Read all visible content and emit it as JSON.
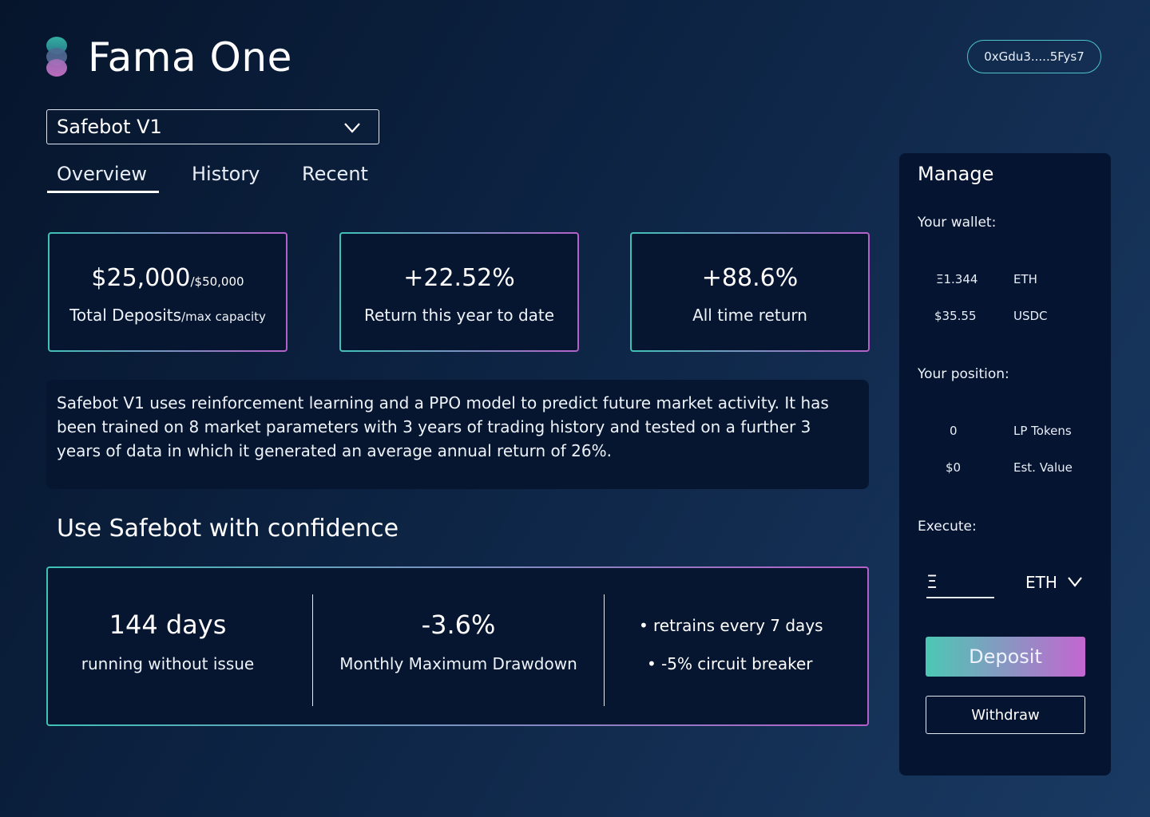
{
  "app": {
    "title": "Fama One"
  },
  "wallet": {
    "address": "0xGdu3.....5Fys7"
  },
  "bot_select": {
    "value": "Safebot V1"
  },
  "tabs": [
    {
      "label": "Overview",
      "active": true
    },
    {
      "label": "History",
      "active": false
    },
    {
      "label": "Recent",
      "active": false
    }
  ],
  "stats": {
    "deposits": {
      "value": "$25,000",
      "max": "/$50,000",
      "label": "Total Deposits",
      "label_suffix": "/max capacity"
    },
    "ytd": {
      "value": "+22.52%",
      "label": "Return this year to date"
    },
    "all_time": {
      "value": "+88.6%",
      "label": "All time return"
    }
  },
  "description": "Safebot V1 uses reinforcement learning and a PPO model to predict future market activity. It has been trained on 8 market parameters with 3 years of trading history and tested on a further 3 years of data in which it generated an average annual return of 26%.",
  "confidence": {
    "title": "Use Safebot with confidence",
    "uptime": {
      "value": "144 days",
      "label": "running without issue"
    },
    "drawdown": {
      "value": "-3.6%",
      "label": "Monthly Maximum Drawdown"
    },
    "bullets": [
      "retrains every 7 days",
      "-5% circuit breaker"
    ]
  },
  "manage": {
    "title": "Manage",
    "wallet_label": "Your wallet:",
    "wallet_rows": [
      {
        "amount": "Ξ1.344",
        "unit": "ETH"
      },
      {
        "amount": "$35.55",
        "unit": "USDC"
      }
    ],
    "position_label": "Your position:",
    "position_rows": [
      {
        "amount": "0",
        "unit": "LP Tokens"
      },
      {
        "amount": "$0",
        "unit": "Est. Value"
      }
    ],
    "execute_label": "Execute:",
    "amount_symbol": "Ξ",
    "currency": "ETH",
    "deposit_label": "Deposit",
    "withdraw_label": "Withdraw"
  },
  "colors": {
    "accent_teal": "#3fc1b6",
    "accent_pink": "#b460c9",
    "background": "#0d2444"
  }
}
